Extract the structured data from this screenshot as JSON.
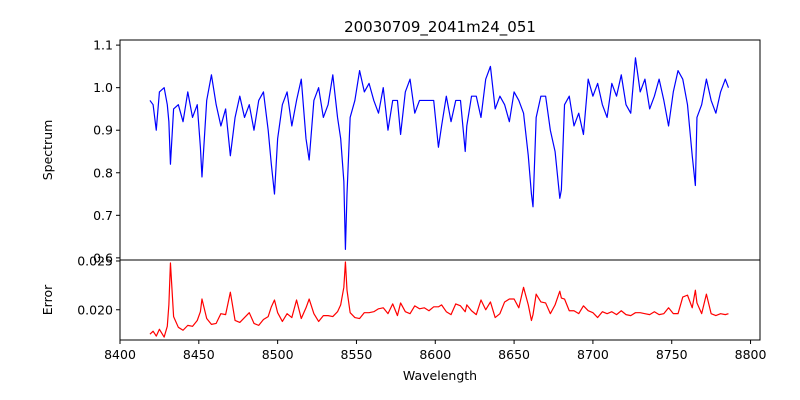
{
  "chart_data": {
    "type": "line",
    "title": "20030709_2041m24_051",
    "xlabel": "Wavelength",
    "xlim": [
      8400,
      8806
    ],
    "xticks": [
      8400,
      8450,
      8500,
      8550,
      8600,
      8650,
      8700,
      8750,
      8800
    ],
    "panels": [
      {
        "name": "spectrum",
        "ylabel": "Spectrum",
        "ylim": [
          0.595,
          1.112
        ],
        "yticks": [
          0.6,
          0.7,
          0.8,
          0.9,
          1.0,
          1.1
        ],
        "yticklabels": [
          "0.6",
          "0.7",
          "0.8",
          "0.9",
          "1.0",
          "1.1"
        ],
        "color": "#0000ff",
        "x": [
          8419,
          8421,
          8423,
          8425,
          8428,
          8430,
          8431,
          8432,
          8434,
          8437,
          8440,
          8443,
          8446,
          8449,
          8451,
          8452,
          8455,
          8458,
          8461,
          8464,
          8467,
          8470,
          8473,
          8476,
          8479,
          8482,
          8485,
          8488,
          8491,
          8494,
          8496,
          8498,
          8500,
          8503,
          8506,
          8509,
          8512,
          8515,
          8518,
          8520,
          8523,
          8526,
          8529,
          8532,
          8535,
          8538,
          8540,
          8542,
          8543,
          8544,
          8546,
          8549,
          8552,
          8555,
          8558,
          8561,
          8564,
          8567,
          8570,
          8573,
          8576,
          8578,
          8581,
          8584,
          8587,
          8590,
          8593,
          8596,
          8599,
          8602,
          8604,
          8607,
          8610,
          8613,
          8616,
          8619,
          8620,
          8623,
          8626,
          8629,
          8632,
          8635,
          8638,
          8641,
          8644,
          8647,
          8650,
          8653,
          8656,
          8659,
          8661,
          8662,
          8664,
          8667,
          8670,
          8673,
          8676,
          8679,
          8680,
          8682,
          8685,
          8688,
          8691,
          8694,
          8697,
          8700,
          8703,
          8706,
          8709,
          8712,
          8715,
          8718,
          8721,
          8724,
          8727,
          8730,
          8733,
          8736,
          8739,
          8742,
          8745,
          8748,
          8751,
          8754,
          8757,
          8760,
          8763,
          8765,
          8766,
          8769,
          8772,
          8775,
          8778,
          8781,
          8784,
          8786
        ],
        "y": [
          0.97,
          0.96,
          0.9,
          0.99,
          1.0,
          0.96,
          0.92,
          0.82,
          0.95,
          0.96,
          0.92,
          0.99,
          0.93,
          0.96,
          0.86,
          0.79,
          0.97,
          1.03,
          0.96,
          0.91,
          0.95,
          0.84,
          0.93,
          0.98,
          0.93,
          0.96,
          0.9,
          0.97,
          0.99,
          0.9,
          0.82,
          0.75,
          0.88,
          0.96,
          0.99,
          0.91,
          0.97,
          1.02,
          0.88,
          0.83,
          0.97,
          1.0,
          0.93,
          0.96,
          1.03,
          0.93,
          0.88,
          0.78,
          0.62,
          0.75,
          0.93,
          0.97,
          1.04,
          0.99,
          1.01,
          0.97,
          0.94,
          1.0,
          0.9,
          0.97,
          0.97,
          0.89,
          0.99,
          1.02,
          0.94,
          0.97,
          0.97,
          0.97,
          0.97,
          0.86,
          0.91,
          0.98,
          0.92,
          0.97,
          0.97,
          0.85,
          0.91,
          0.98,
          0.98,
          0.93,
          1.02,
          1.05,
          0.95,
          0.98,
          0.96,
          0.92,
          0.99,
          0.97,
          0.94,
          0.84,
          0.75,
          0.72,
          0.93,
          0.98,
          0.98,
          0.9,
          0.85,
          0.74,
          0.76,
          0.96,
          0.98,
          0.91,
          0.94,
          0.89,
          1.02,
          0.98,
          1.01,
          0.96,
          0.93,
          1.01,
          0.98,
          1.03,
          0.96,
          0.94,
          1.07,
          0.99,
          1.02,
          0.95,
          0.98,
          1.02,
          0.97,
          0.91,
          0.99,
          1.04,
          1.02,
          0.96,
          0.84,
          0.77,
          0.93,
          0.96,
          1.02,
          0.97,
          0.94,
          0.99,
          1.02,
          1.0
        ]
      },
      {
        "name": "error",
        "ylabel": "Error",
        "ylim": [
          0.0169,
          0.0251
        ],
        "yticks": [
          0.02,
          0.025
        ],
        "yticklabels": [
          "0.020",
          "0.025"
        ],
        "color": "#ff0000",
        "x": [
          8419,
          8421,
          8423,
          8425,
          8428,
          8430,
          8431,
          8432,
          8434,
          8437,
          8440,
          8443,
          8446,
          8449,
          8451,
          8452,
          8455,
          8458,
          8461,
          8464,
          8467,
          8470,
          8473,
          8476,
          8479,
          8482,
          8485,
          8488,
          8491,
          8494,
          8496,
          8498,
          8500,
          8503,
          8506,
          8509,
          8512,
          8515,
          8518,
          8520,
          8523,
          8526,
          8529,
          8532,
          8535,
          8538,
          8540,
          8542,
          8543,
          8544,
          8546,
          8549,
          8552,
          8555,
          8558,
          8561,
          8564,
          8567,
          8570,
          8573,
          8576,
          8578,
          8581,
          8584,
          8587,
          8590,
          8593,
          8596,
          8599,
          8602,
          8604,
          8607,
          8610,
          8613,
          8616,
          8619,
          8620,
          8623,
          8626,
          8629,
          8632,
          8635,
          8638,
          8641,
          8644,
          8647,
          8650,
          8653,
          8656,
          8659,
          8661,
          8662,
          8664,
          8667,
          8670,
          8673,
          8676,
          8679,
          8680,
          8682,
          8685,
          8688,
          8691,
          8694,
          8697,
          8700,
          8703,
          8706,
          8709,
          8712,
          8715,
          8718,
          8721,
          8724,
          8727,
          8730,
          8733,
          8736,
          8739,
          8742,
          8745,
          8748,
          8751,
          8754,
          8757,
          8760,
          8763,
          8765,
          8766,
          8769,
          8772,
          8775,
          8778,
          8781,
          8784,
          8786
        ],
        "y": [
          0.0175,
          0.0178,
          0.0173,
          0.018,
          0.0172,
          0.0183,
          0.0205,
          0.0248,
          0.0193,
          0.0182,
          0.0179,
          0.0184,
          0.0183,
          0.0189,
          0.0198,
          0.0211,
          0.0191,
          0.0185,
          0.0186,
          0.0196,
          0.0195,
          0.0218,
          0.0189,
          0.0187,
          0.0192,
          0.0197,
          0.0186,
          0.0184,
          0.019,
          0.0193,
          0.0203,
          0.021,
          0.0197,
          0.0188,
          0.0196,
          0.0192,
          0.021,
          0.0191,
          0.0202,
          0.0211,
          0.0196,
          0.0188,
          0.0194,
          0.0194,
          0.0193,
          0.0198,
          0.0205,
          0.0223,
          0.0249,
          0.022,
          0.0197,
          0.0192,
          0.0191,
          0.0197,
          0.0197,
          0.0198,
          0.0201,
          0.0202,
          0.0196,
          0.0206,
          0.0194,
          0.0207,
          0.0198,
          0.0196,
          0.0204,
          0.0201,
          0.0202,
          0.0199,
          0.0203,
          0.0203,
          0.0205,
          0.0198,
          0.0195,
          0.0206,
          0.0204,
          0.0198,
          0.0205,
          0.0199,
          0.0195,
          0.021,
          0.02,
          0.0208,
          0.0192,
          0.0196,
          0.0208,
          0.0211,
          0.0211,
          0.0202,
          0.0223,
          0.0205,
          0.0189,
          0.0195,
          0.0216,
          0.0208,
          0.0207,
          0.0196,
          0.0205,
          0.0219,
          0.0212,
          0.0211,
          0.0199,
          0.0199,
          0.0196,
          0.0204,
          0.0199,
          0.0197,
          0.0192,
          0.0198,
          0.0196,
          0.0198,
          0.0195,
          0.0199,
          0.0195,
          0.0194,
          0.0197,
          0.0197,
          0.0196,
          0.0195,
          0.0198,
          0.0195,
          0.0196,
          0.0202,
          0.0196,
          0.0196,
          0.0213,
          0.0215,
          0.0202,
          0.022,
          0.0207,
          0.0196,
          0.0216,
          0.0196,
          0.0194,
          0.0196,
          0.0195,
          0.0196
        ]
      }
    ]
  }
}
